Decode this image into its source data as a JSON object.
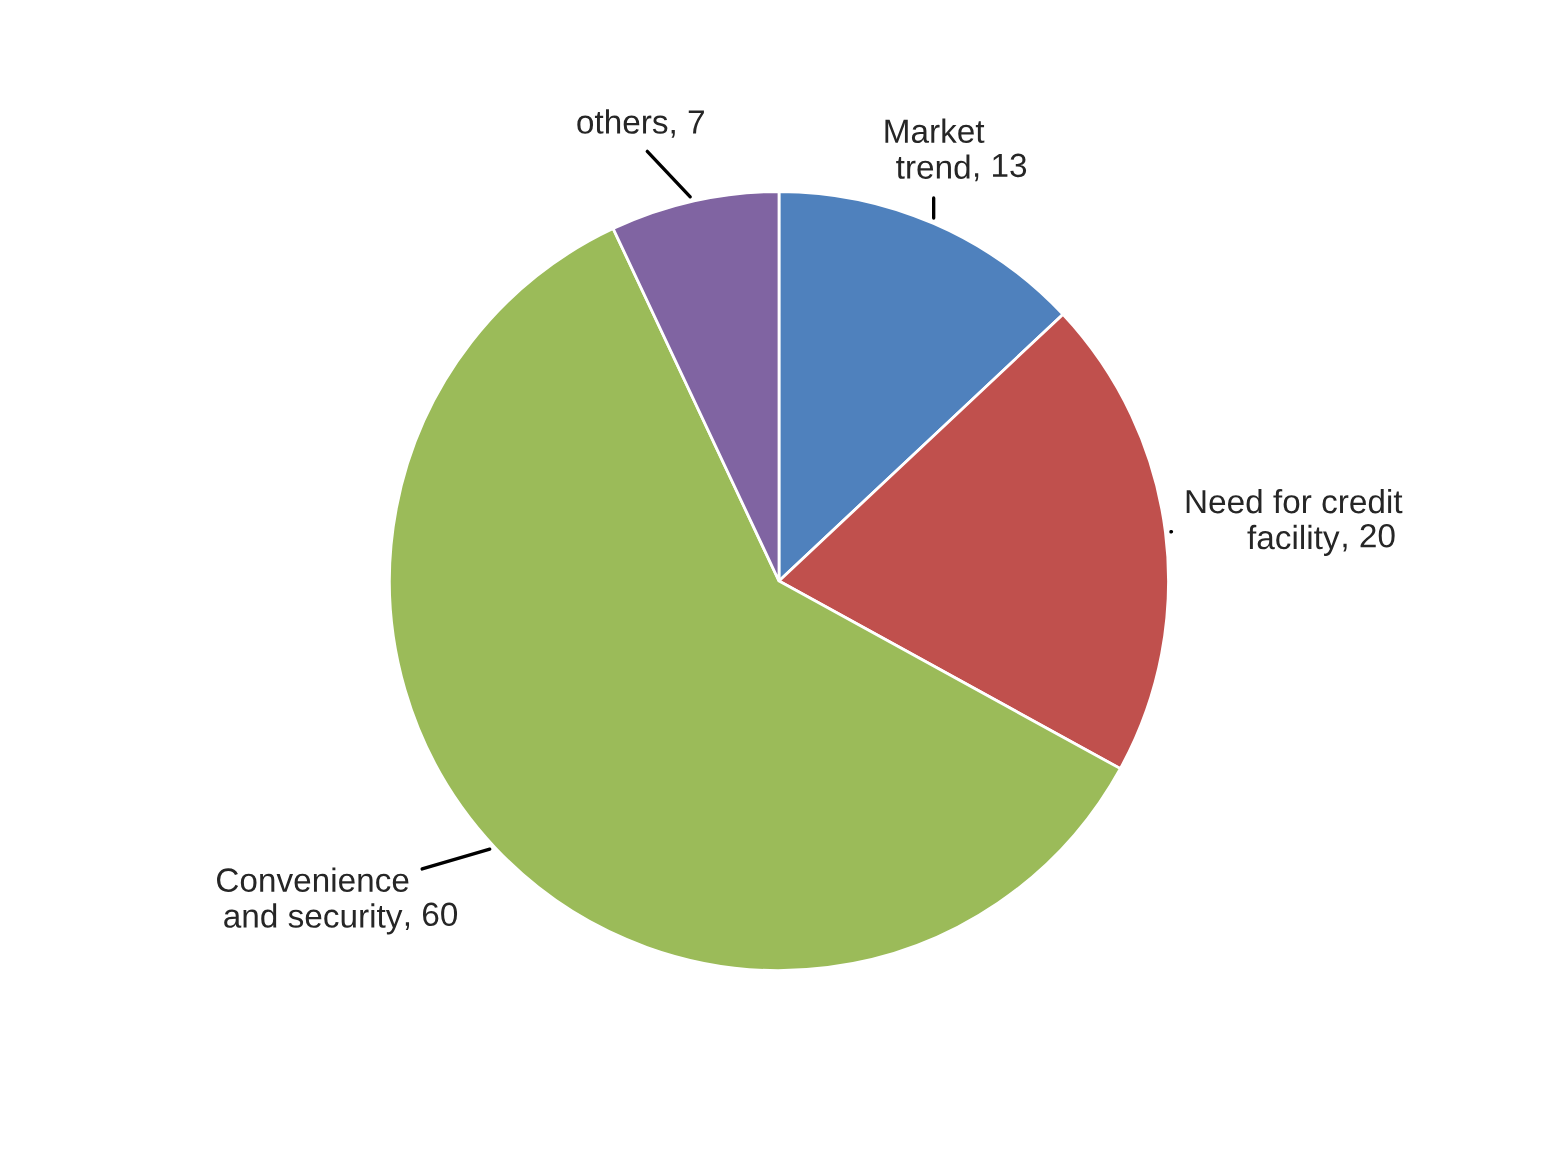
{
  "chart_data": {
    "type": "pie",
    "categories": [
      "Market\ntrend",
      "Need for credit\nfacility",
      "Convenience\nand security",
      "others"
    ],
    "values": [
      13,
      20,
      60,
      7
    ],
    "colors": [
      "#4f81bd",
      "#c0504d",
      "#9bbb59",
      "#8064a2"
    ],
    "value_labels": [
      ", 13",
      ", 20",
      ", 60",
      ", 7"
    ]
  }
}
